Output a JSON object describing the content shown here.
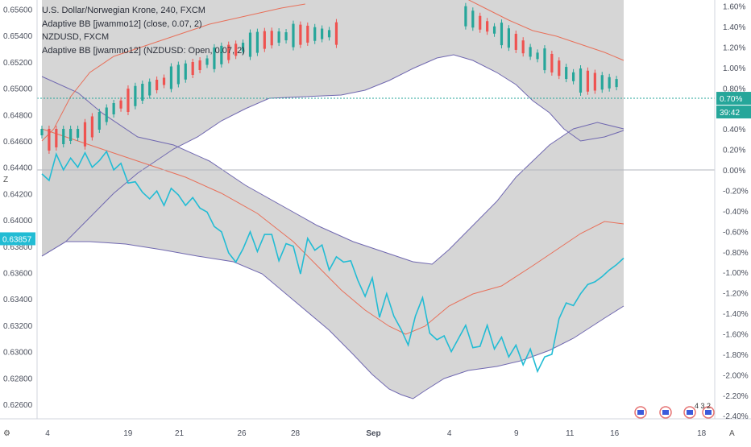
{
  "legend": {
    "line1": "U.S. Dollar/Norwegian Krone, 240, FXCM",
    "line2": "Adaptive BB [jwammo12] (close, 0.07, 2)",
    "line3": "NZDUSD, FXCM",
    "line4": "Adaptive BB [jwammo12] (NZDUSD: Open, 0.07, 2)"
  },
  "corner": {
    "left": "Z",
    "bottom_left": "⚙",
    "bottom_right": "A"
  },
  "markers": {
    "earnings_label": "4 3 2"
  },
  "colors": {
    "background": "#ffffff",
    "band_fill": "#cfcfcf",
    "band_line": "#7068b0",
    "basis": "#e8705a",
    "nzd_line": "#22bcd4",
    "bull": "#26a69a",
    "bear": "#ef5350",
    "cursor_hline": "#26a69a",
    "zero_line": "#b2b5be"
  },
  "chart_data": {
    "type": "line",
    "title": "U.S. Dollar/Norwegian Krone, 240, FXCM",
    "left_axis": {
      "ticks": [
        "0.65600",
        "0.65400",
        "0.65200",
        "0.65000",
        "0.64800",
        "0.64600",
        "0.64400",
        "0.64200",
        "0.64000",
        "0.63800",
        "0.63600",
        "0.63400",
        "0.63200",
        "0.63000",
        "0.62800",
        "0.62600"
      ],
      "range": [
        0.6249,
        0.6567
      ],
      "current_label": "0.63857",
      "current_value": 0.63857
    },
    "right_axis": {
      "ticks": [
        "1.60%",
        "1.40%",
        "1.20%",
        "1.00%",
        "0.80%",
        "0.60%",
        "0.40%",
        "0.20%",
        "0.00%",
        "-0.20%",
        "-0.40%",
        "-0.60%",
        "-0.80%",
        "-1.00%",
        "-1.20%",
        "-1.40%",
        "-1.60%",
        "-1.80%",
        "-2.00%",
        "-2.20%",
        "-2.40%"
      ],
      "range": [
        -2.43,
        1.66
      ],
      "current_label": "0.70%",
      "current_value": 0.7,
      "countdown": "39:42"
    },
    "x_ticks": [
      "4",
      "19",
      "21",
      "26",
      "28",
      "Sep",
      "4",
      "9",
      "11",
      "16",
      "18"
    ],
    "series": [
      {
        "name": "NZDUSD, FXCM",
        "x": [
          0,
          3,
          6,
          9,
          12,
          15,
          18,
          21,
          24,
          27,
          30,
          33,
          36,
          39,
          42,
          45,
          48,
          51,
          54,
          57,
          60,
          63,
          66,
          69,
          72,
          75,
          78,
          81,
          84,
          87,
          90,
          93,
          96,
          99,
          102,
          105,
          108,
          111,
          114,
          117,
          120,
          123,
          126,
          129,
          132,
          135,
          138,
          141,
          144,
          147,
          150,
          153,
          156,
          159,
          162,
          165,
          168,
          171,
          174,
          177,
          180,
          183,
          186,
          189,
          192,
          195,
          198,
          201,
          204,
          207,
          210,
          213,
          216,
          219,
          222,
          225,
          228,
          231,
          234,
          237,
          240,
          243
        ],
        "values": [
          0.6435,
          0.643,
          0.645,
          0.6438,
          0.6447,
          0.644,
          0.6451,
          0.644,
          0.6445,
          0.6452,
          0.6438,
          0.6443,
          0.6428,
          0.6429,
          0.6421,
          0.6416,
          0.6422,
          0.6411,
          0.6424,
          0.6419,
          0.6411,
          0.6417,
          0.6409,
          0.6406,
          0.6395,
          0.6391,
          0.6375,
          0.6368,
          0.6378,
          0.6391,
          0.6376,
          0.6389,
          0.6389,
          0.6369,
          0.6382,
          0.638,
          0.6359,
          0.6386,
          0.6377,
          0.6381,
          0.6362,
          0.6372,
          0.6368,
          0.6369,
          0.6354,
          0.6342,
          0.6356,
          0.6326,
          0.6344,
          0.6327,
          0.6317,
          0.6305,
          0.6327,
          0.6341,
          0.6314,
          0.6309,
          0.6312,
          0.63,
          0.631,
          0.632,
          0.6303,
          0.6304,
          0.632,
          0.6302,
          0.6311,
          0.6296,
          0.6305,
          0.629,
          0.6302,
          0.6285,
          0.6296,
          0.6298,
          0.6325,
          0.6337,
          0.6335,
          0.6344,
          0.6351,
          0.6353,
          0.6357,
          0.6362,
          0.6366,
          0.6371
        ]
      },
      {
        "name": "band-upper",
        "values": []
      },
      {
        "name": "band-lower",
        "values": []
      },
      {
        "name": "basis",
        "values": []
      }
    ]
  }
}
